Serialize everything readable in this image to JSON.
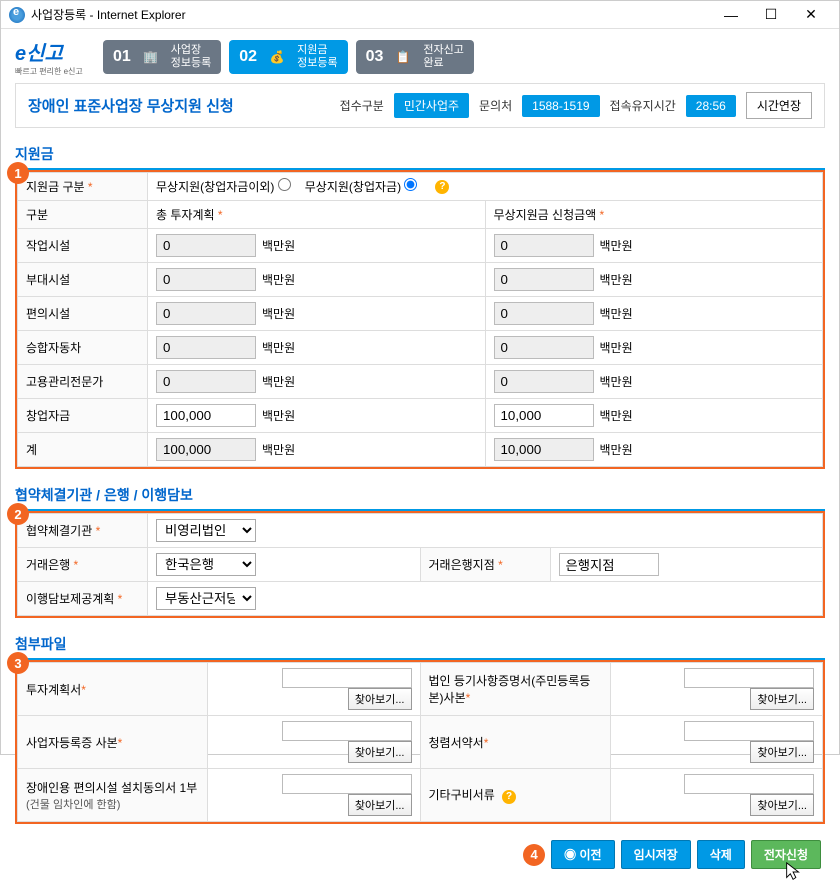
{
  "window": {
    "title": "사업장등록 - Internet Explorer"
  },
  "logo": {
    "main": "신고",
    "sub": "빠르고 편리한 e신고"
  },
  "steps": [
    {
      "num": "01",
      "line1": "사업장",
      "line2": "정보등록"
    },
    {
      "num": "02",
      "line1": "지원금",
      "line2": "정보등록"
    },
    {
      "num": "03",
      "line1": "전자신고",
      "line2": "완료"
    }
  ],
  "header": {
    "title": "장애인 표준사업장 무상지원 신청",
    "recv_label": "접수구분",
    "recv_value": "민간사업주",
    "contact_label": "문의처",
    "contact_value": "1588-1519",
    "session_label": "접속유지시간",
    "session_value": "28:56",
    "extend_btn": "시간연장"
  },
  "section1": {
    "title": "지원금",
    "row1_label": "지원금 구분",
    "radio1": "무상지원(창업자금이외)",
    "radio2": "무상지원(창업자금)",
    "col_category": "구분",
    "col_total": "총 투자계획",
    "col_request": "무상지원금 신청금액",
    "unit": "백만원",
    "rows": [
      {
        "label": "작업시설",
        "total": "0",
        "request": "0",
        "readonly": true
      },
      {
        "label": "부대시설",
        "total": "0",
        "request": "0",
        "readonly": true
      },
      {
        "label": "편의시설",
        "total": "0",
        "request": "0",
        "readonly": true
      },
      {
        "label": "승합자동차",
        "total": "0",
        "request": "0",
        "readonly": true
      },
      {
        "label": "고용관리전문가",
        "total": "0",
        "request": "0",
        "readonly": true
      },
      {
        "label": "창업자금",
        "total": "100,000",
        "request": "10,000",
        "readonly": false
      },
      {
        "label": "계",
        "total": "100,000",
        "request": "10,000",
        "readonly": true
      }
    ]
  },
  "section2": {
    "title": "협약체결기관 / 은행 / 이행담보",
    "org_label": "협약체결기관",
    "org_value": "비영리법인",
    "bank_label": "거래은행",
    "bank_value": "한국은행",
    "branch_label": "거래은행지점",
    "branch_value": "은행지점",
    "guarantee_label": "이행담보제공계획",
    "guarantee_value": "부동산근저당"
  },
  "section3": {
    "title": "첨부파일",
    "browse": "찾아보기...",
    "files": [
      {
        "label": "투자계획서",
        "req": true
      },
      {
        "label": "법인 등기사항증명서(주민등록등본)사본",
        "req": true
      },
      {
        "label": "사업자등록증 사본",
        "req": true
      },
      {
        "label": "청렴서약서",
        "req": true
      },
      {
        "label": "장애인용 편의시설 설치동의서 1부",
        "sub": "(건물 임차인에 한함)",
        "req": false
      },
      {
        "label": "기타구비서류",
        "req": false,
        "help": true
      }
    ]
  },
  "buttons": {
    "prev": "이전",
    "save": "임시저장",
    "delete": "삭제",
    "submit": "전자신청"
  },
  "colors": {
    "primary": "#0099e5",
    "accent": "#f26522",
    "green": "#5cb85c"
  }
}
